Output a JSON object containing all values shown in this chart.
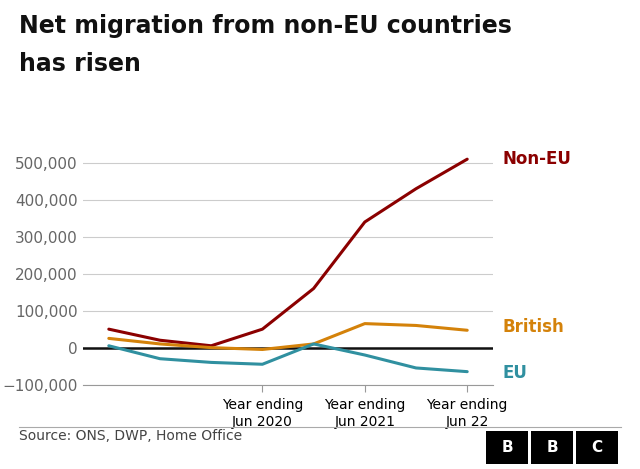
{
  "title_line1": "Net migration from non-EU countries",
  "title_line2": "has risen",
  "title_fontsize": 17,
  "source_text": "Source: ONS, DWP, Home Office",
  "x_tick_labels": [
    "Year ending\nJun 2020",
    "Year ending\nJun 2021",
    "Year ending\nJun 22"
  ],
  "non_eu": [
    50000,
    20000,
    5000,
    50000,
    160000,
    340000,
    430000,
    510000
  ],
  "british": [
    25000,
    10000,
    0,
    -5000,
    10000,
    65000,
    60000,
    47000
  ],
  "eu_values": [
    5000,
    -30000,
    -40000,
    -45000,
    10000,
    -20000,
    -55000,
    -65000
  ],
  "non_eu_color": "#8B0000",
  "british_color": "#D4820A",
  "eu_color": "#3090A0",
  "zero_line_color": "#111111",
  "bottom_line_color": "#111111",
  "grid_color": "#cccccc",
  "background_color": "#ffffff",
  "ylim": [
    -100000,
    560000
  ],
  "yticks": [
    -100000,
    0,
    100000,
    200000,
    300000,
    400000,
    500000
  ],
  "ylabel_fontsize": 11,
  "annotation_fontsize": 12,
  "footer_fontsize": 10,
  "tick_label_color": "#666666"
}
